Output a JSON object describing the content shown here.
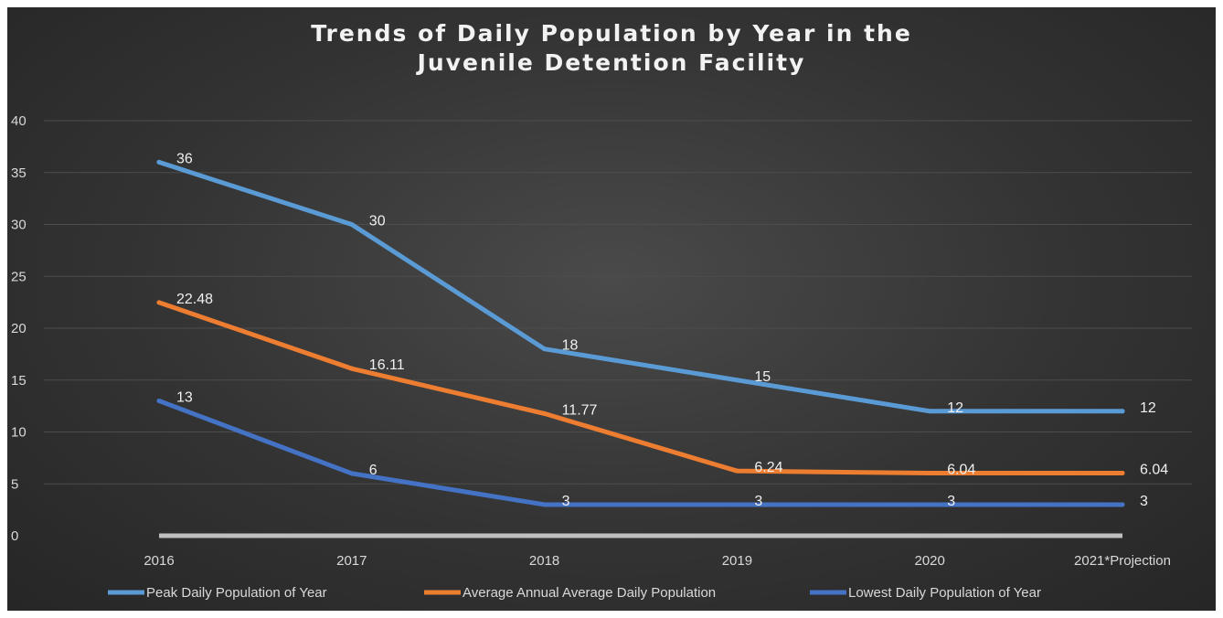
{
  "chart_data": {
    "type": "line",
    "title_line1": "Trends of Daily Population by Year in the",
    "title_line2": "Juvenile Detention Facility",
    "categories": [
      "2016",
      "2017",
      "2018",
      "2019",
      "2020",
      "2021*Projection"
    ],
    "ylim": [
      0,
      40
    ],
    "yticks": [
      0,
      5,
      10,
      15,
      20,
      25,
      30,
      35,
      40
    ],
    "grid": true,
    "legend_position": "bottom",
    "series": [
      {
        "name": "Peak Daily Population of Year",
        "color": "#5b9bd5",
        "values": [
          36,
          30,
          18,
          15,
          12,
          12
        ],
        "labels": [
          "36",
          "30",
          "18",
          "15",
          "12",
          "12"
        ]
      },
      {
        "name": "Average Annual Average Daily Population",
        "color": "#ed7d31",
        "values": [
          22.48,
          16.11,
          11.77,
          6.24,
          6.04,
          6.04
        ],
        "labels": [
          "22.48",
          "16.11",
          "11.77",
          "6.24",
          "6.04",
          "6.04"
        ]
      },
      {
        "name": "Lowest Daily Population of Year",
        "color": "#4472c4",
        "values": [
          13,
          6,
          3,
          3,
          3,
          3
        ],
        "labels": [
          "13",
          "6",
          "3",
          "3",
          "3",
          "3"
        ]
      }
    ]
  }
}
